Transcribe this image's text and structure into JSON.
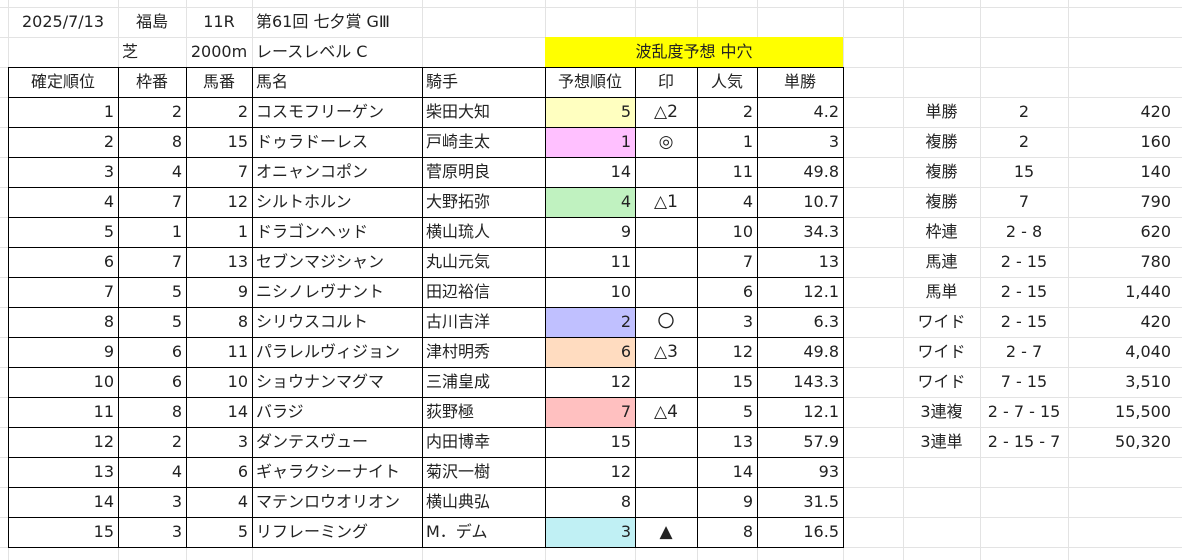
{
  "header": {
    "date": "2025/7/13",
    "venue": "福島",
    "race_no": "11R",
    "race_name": "第61回 七夕賞 GⅢ",
    "surface": "芝",
    "distance": "2000m",
    "race_level": "レースレベル C",
    "volatility": "波乱度予想 中穴"
  },
  "columns": [
    "確定順位",
    "枠番",
    "馬番",
    "馬名",
    "騎手",
    "予想順位",
    "印",
    "人気",
    "単勝"
  ],
  "rows": [
    {
      "finish": "1",
      "frame": "2",
      "number": "2",
      "horse": "コスモフリーゲン",
      "jockey": "柴田大知",
      "pred": "5",
      "mark": "△2",
      "pop": "2",
      "odds": "4.2",
      "pred_color": "#ffffc0"
    },
    {
      "finish": "2",
      "frame": "8",
      "number": "15",
      "horse": "ドゥラドーレス",
      "jockey": "戸崎圭太",
      "pred": "1",
      "mark": "◎",
      "pop": "1",
      "odds": "3",
      "pred_color": "#ffc0ff"
    },
    {
      "finish": "3",
      "frame": "4",
      "number": "7",
      "horse": "オニャンコポン",
      "jockey": "菅原明良",
      "pred": "14",
      "mark": "",
      "pop": "11",
      "odds": "49.8",
      "pred_color": ""
    },
    {
      "finish": "4",
      "frame": "7",
      "number": "12",
      "horse": "シルトホルン",
      "jockey": "大野拓弥",
      "pred": "4",
      "mark": "△1",
      "pop": "4",
      "odds": "10.7",
      "pred_color": "#c0f2c0"
    },
    {
      "finish": "5",
      "frame": "1",
      "number": "1",
      "horse": "ドラゴンヘッド",
      "jockey": "横山琉人",
      "pred": "9",
      "mark": "",
      "pop": "10",
      "odds": "34.3",
      "pred_color": ""
    },
    {
      "finish": "6",
      "frame": "7",
      "number": "13",
      "horse": "セブンマジシャン",
      "jockey": "丸山元気",
      "pred": "11",
      "mark": "",
      "pop": "7",
      "odds": "13",
      "pred_color": ""
    },
    {
      "finish": "7",
      "frame": "5",
      "number": "9",
      "horse": "ニシノレヴナント",
      "jockey": "田辺裕信",
      "pred": "10",
      "mark": "",
      "pop": "6",
      "odds": "12.1",
      "pred_color": ""
    },
    {
      "finish": "8",
      "frame": "5",
      "number": "8",
      "horse": "シリウスコルト",
      "jockey": "古川吉洋",
      "pred": "2",
      "mark": "〇",
      "pop": "3",
      "odds": "6.3",
      "pred_color": "#c0c0ff"
    },
    {
      "finish": "9",
      "frame": "6",
      "number": "11",
      "horse": "パラレルヴィジョン",
      "jockey": "津村明秀",
      "pred": "6",
      "mark": "△3",
      "pop": "12",
      "odds": "49.8",
      "pred_color": "#ffdcc0"
    },
    {
      "finish": "10",
      "frame": "6",
      "number": "10",
      "horse": "ショウナンマグマ",
      "jockey": "三浦皇成",
      "pred": "12",
      "mark": "",
      "pop": "15",
      "odds": "143.3",
      "pred_color": ""
    },
    {
      "finish": "11",
      "frame": "8",
      "number": "14",
      "horse": "バラジ",
      "jockey": "荻野極",
      "pred": "7",
      "mark": "△4",
      "pop": "5",
      "odds": "12.1",
      "pred_color": "#ffc0c0"
    },
    {
      "finish": "12",
      "frame": "2",
      "number": "3",
      "horse": "ダンテスヴュー",
      "jockey": "内田博幸",
      "pred": "15",
      "mark": "",
      "pop": "13",
      "odds": "57.9",
      "pred_color": ""
    },
    {
      "finish": "13",
      "frame": "4",
      "number": "6",
      "horse": "ギャラクシーナイト",
      "jockey": "菊沢一樹",
      "pred": "12",
      "mark": "",
      "pop": "14",
      "odds": "93",
      "pred_color": ""
    },
    {
      "finish": "14",
      "frame": "3",
      "number": "4",
      "horse": "マテンロウオリオン",
      "jockey": "横山典弘",
      "pred": "8",
      "mark": "",
      "pop": "9",
      "odds": "31.5",
      "pred_color": ""
    },
    {
      "finish": "15",
      "frame": "3",
      "number": "5",
      "horse": "リフレーミング",
      "jockey": "M．デム",
      "pred": "3",
      "mark": "▲",
      "pop": "8",
      "odds": "16.5",
      "pred_color": "#c0f0f4"
    }
  ],
  "payouts": [
    {
      "type": "単勝",
      "combo": "2",
      "amount": "420"
    },
    {
      "type": "複勝",
      "combo": "2",
      "amount": "160"
    },
    {
      "type": "複勝",
      "combo": "15",
      "amount": "140"
    },
    {
      "type": "複勝",
      "combo": "7",
      "amount": "790"
    },
    {
      "type": "枠連",
      "combo": "2 - 8",
      "amount": "620"
    },
    {
      "type": "馬連",
      "combo": "2 - 15",
      "amount": "780"
    },
    {
      "type": "馬単",
      "combo": "2 - 15",
      "amount": "1,440"
    },
    {
      "type": "ワイド",
      "combo": "2 - 15",
      "amount": "420"
    },
    {
      "type": "ワイド",
      "combo": "2 - 7",
      "amount": "4,040"
    },
    {
      "type": "ワイド",
      "combo": "7 - 15",
      "amount": "3,510"
    },
    {
      "type": "3連複",
      "combo": "2 - 7 - 15",
      "amount": "15,500"
    },
    {
      "type": "3連単",
      "combo": "2 - 15 - 7",
      "amount": "50,320"
    }
  ],
  "colors": {
    "volatility_banner": "#ffff00",
    "gridline": "#e3e3e3",
    "border": "#000000"
  }
}
